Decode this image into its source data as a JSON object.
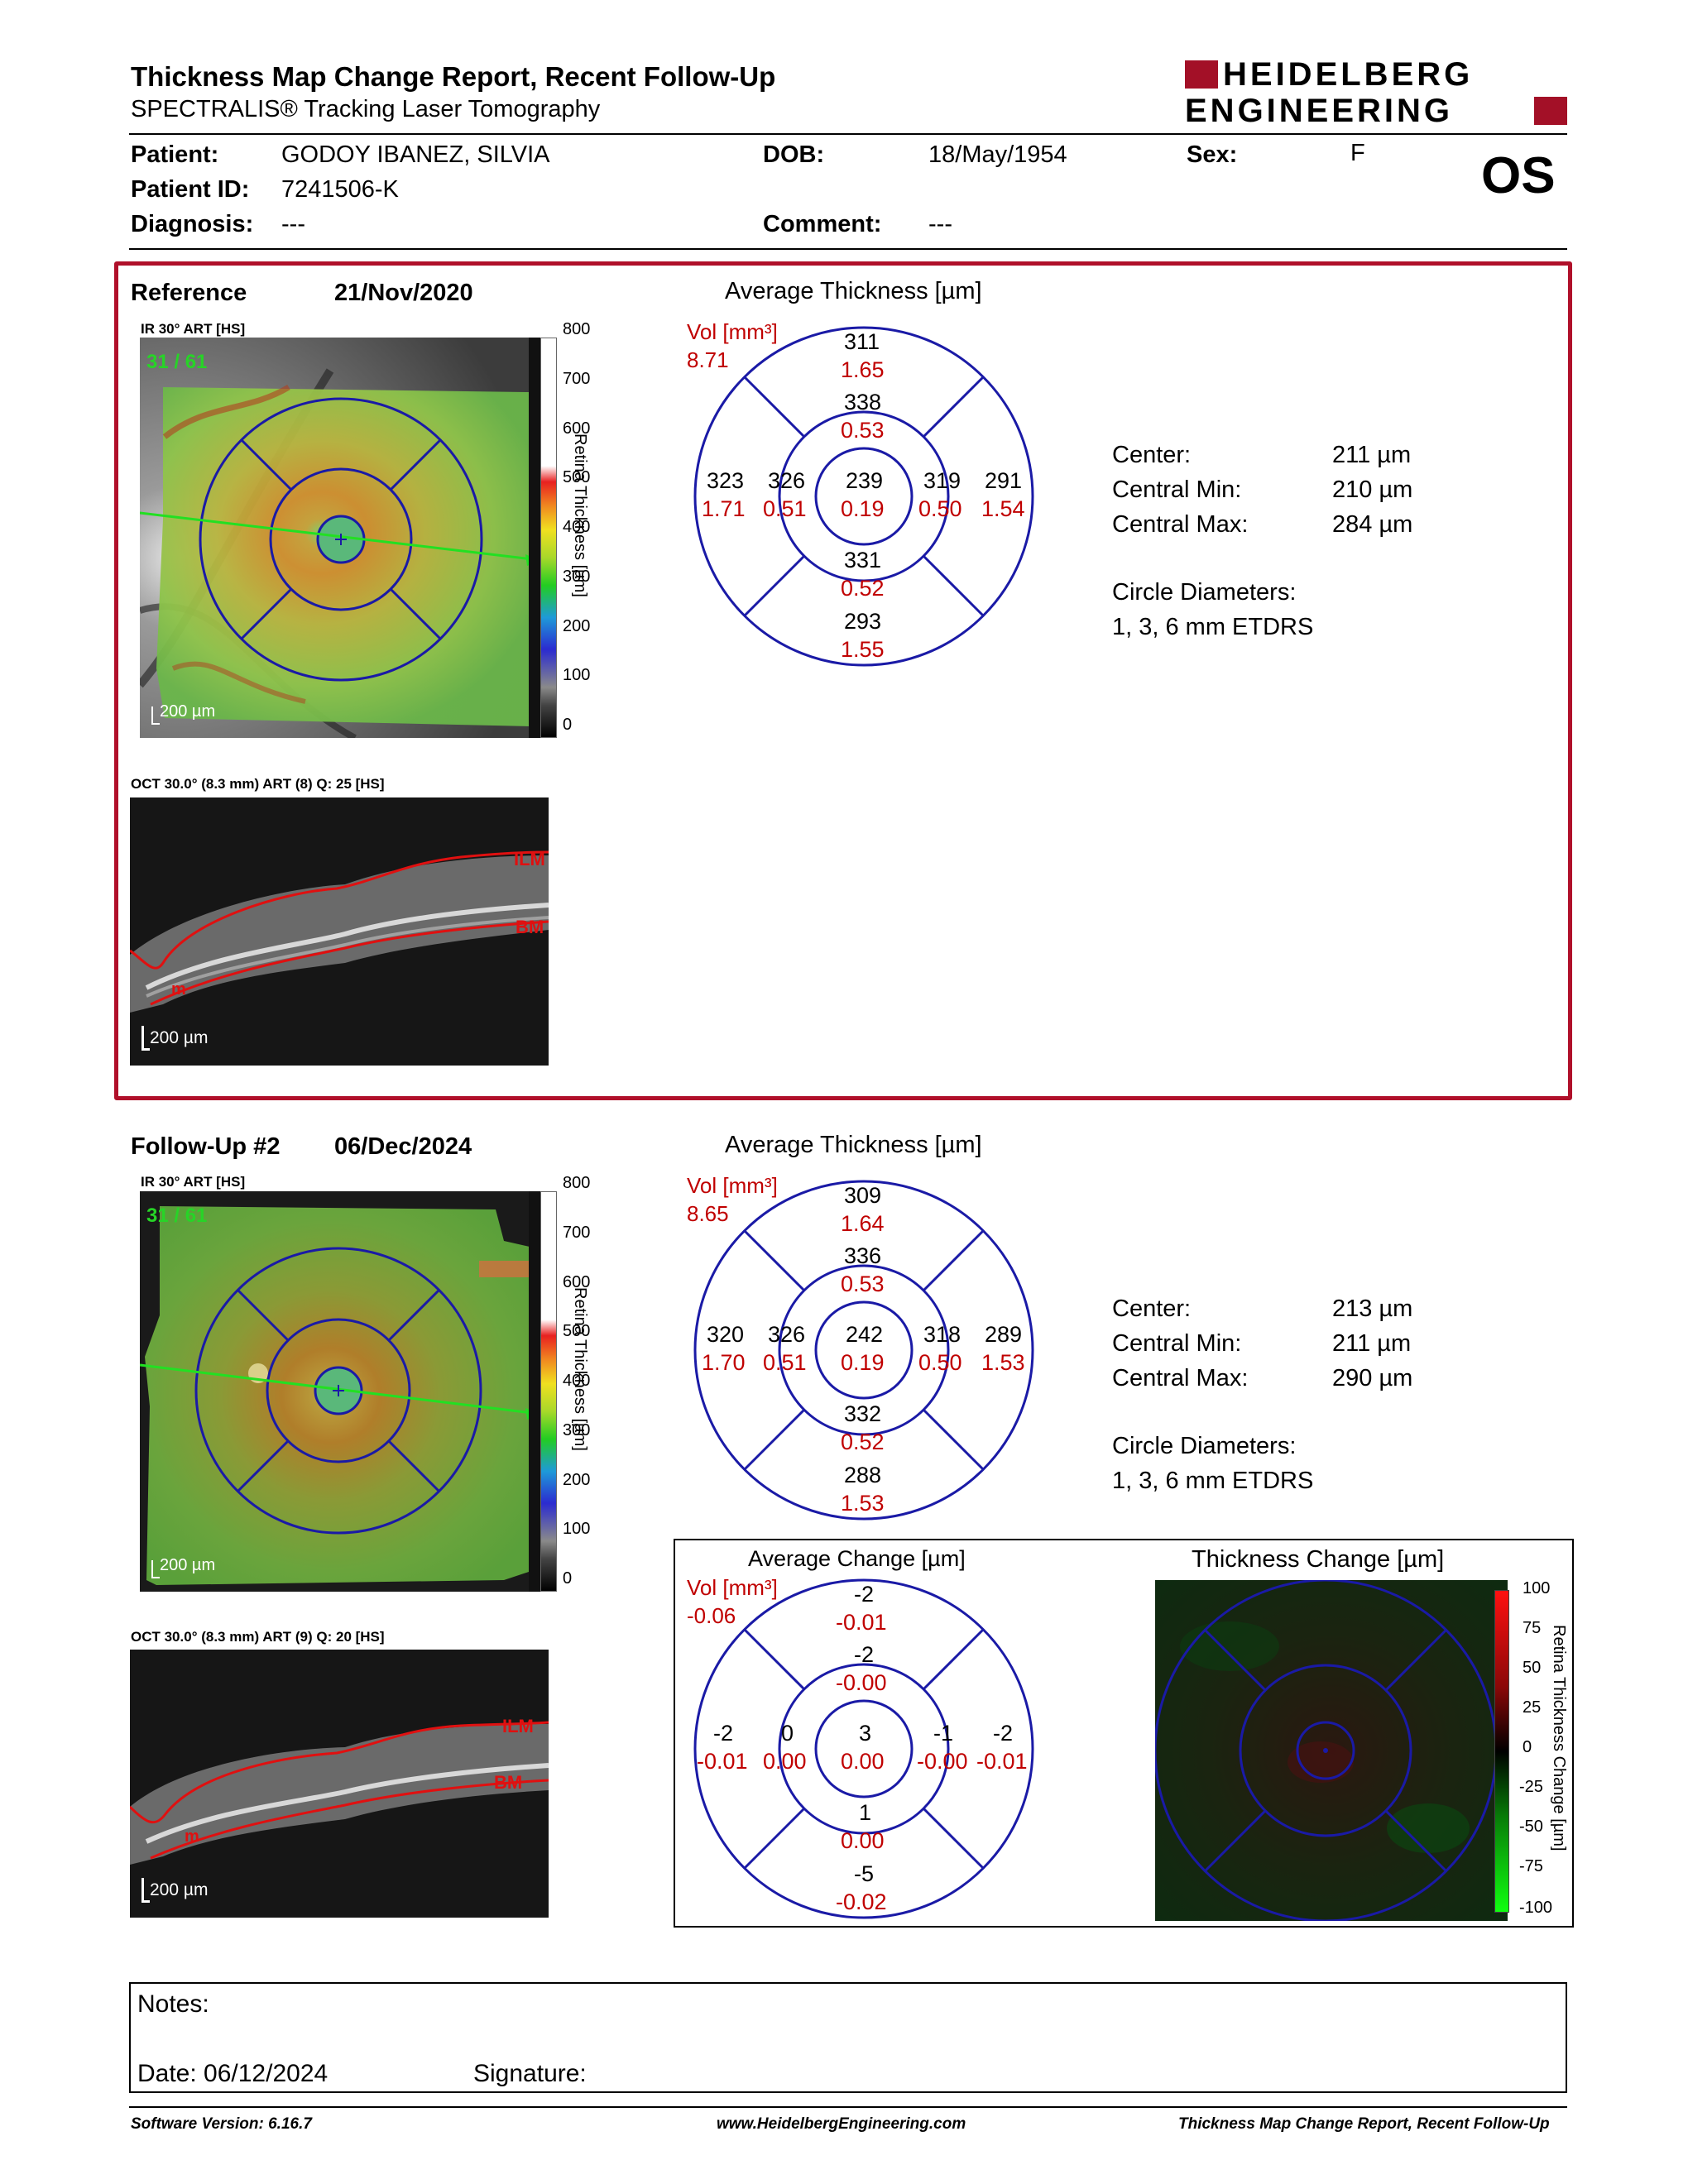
{
  "header": {
    "title": "Thickness Map Change Report, Recent Follow-Up",
    "subtitle": "SPECTRALIS® Tracking Laser Tomography",
    "logo_line1": "HEIDELBERG",
    "logo_line2": "ENGINEERING"
  },
  "patient": {
    "patient_label": "Patient:",
    "patient_value": "GODOY IBANEZ, SILVIA",
    "id_label": "Patient ID:",
    "id_value": "7241506-K",
    "diagnosis_label": "Diagnosis:",
    "diagnosis_value": "---",
    "dob_label": "DOB:",
    "dob_value": "18/May/1954",
    "comment_label": "Comment:",
    "comment_value": "---",
    "sex_label": "Sex:",
    "sex_value": "F",
    "eye": "OS"
  },
  "reference": {
    "label": "Reference",
    "date": "21/Nov/2020",
    "ir_label": "IR 30° ART [HS]",
    "frame": "31 / 61",
    "scale": "200 µm",
    "oct_label": "OCT 30.0° (8.3 mm) ART (8) Q: 25 [HS]",
    "oct_scale": "200 µm",
    "ilm": "ILM",
    "bm": "BM",
    "m": "m",
    "colorbar_ticks": [
      "800",
      "700",
      "600",
      "500",
      "400",
      "300",
      "200",
      "100",
      "0"
    ],
    "colorbar_title": "Retina Thickness [µm]",
    "avg_title": "Average Thickness [µm]",
    "vol_label": "Vol [mm³]",
    "vol_value": "8.71",
    "sectors": {
      "outer_sup": [
        "311",
        "1.65"
      ],
      "inner_sup": [
        "338",
        "0.53"
      ],
      "outer_temp": [
        "323",
        "1.71"
      ],
      "inner_temp": [
        "326",
        "0.51"
      ],
      "center": [
        "239",
        "0.19"
      ],
      "inner_nasal": [
        "319",
        "0.50"
      ],
      "outer_nasal": [
        "291",
        "1.54"
      ],
      "inner_inf": [
        "331",
        "0.52"
      ],
      "outer_inf": [
        "293",
        "1.55"
      ]
    },
    "stats": {
      "center_label": "Center:",
      "center_value": "211 µm",
      "min_label": "Central Min:",
      "min_value": "210 µm",
      "max_label": "Central Max:",
      "max_value": "284 µm",
      "circ_label": "Circle Diameters:",
      "circ_value": "1, 3, 6 mm ETDRS"
    }
  },
  "followup": {
    "label": "Follow-Up #2",
    "date": "06/Dec/2024",
    "ir_label": "IR 30° ART [HS]",
    "frame": "31 / 61",
    "scale": "200 µm",
    "oct_label": "OCT 30.0° (8.3 mm) ART (9) Q: 20 [HS]",
    "oct_scale": "200 µm",
    "ilm": "ILM",
    "bm": "BM",
    "m": "m",
    "colorbar_ticks": [
      "800",
      "700",
      "600",
      "500",
      "400",
      "300",
      "200",
      "100",
      "0"
    ],
    "colorbar_title": "Retina Thickness [µm]",
    "avg_title": "Average Thickness [µm]",
    "vol_label": "Vol [mm³]",
    "vol_value": "8.65",
    "sectors": {
      "outer_sup": [
        "309",
        "1.64"
      ],
      "inner_sup": [
        "336",
        "0.53"
      ],
      "outer_temp": [
        "320",
        "1.70"
      ],
      "inner_temp": [
        "326",
        "0.51"
      ],
      "center": [
        "242",
        "0.19"
      ],
      "inner_nasal": [
        "318",
        "0.50"
      ],
      "outer_nasal": [
        "289",
        "1.53"
      ],
      "inner_inf": [
        "332",
        "0.52"
      ],
      "outer_inf": [
        "288",
        "1.53"
      ]
    },
    "stats": {
      "center_label": "Center:",
      "center_value": "213 µm",
      "min_label": "Central Min:",
      "min_value": "211 µm",
      "max_label": "Central Max:",
      "max_value": "290 µm",
      "circ_label": "Circle Diameters:",
      "circ_value": "1, 3, 6 mm ETDRS"
    }
  },
  "change": {
    "avg_title": "Average Change [µm]",
    "vol_label": "Vol [mm³]",
    "vol_value": "-0.06",
    "sectors": {
      "outer_sup": [
        "-2",
        "-0.01"
      ],
      "inner_sup": [
        "-2",
        "-0.00"
      ],
      "outer_temp": [
        "-2",
        "-0.01"
      ],
      "inner_temp": [
        "0",
        "0.00"
      ],
      "center": [
        "3",
        "0.00"
      ],
      "inner_nasal": [
        "-1",
        "-0.00"
      ],
      "outer_nasal": [
        "-2",
        "-0.01"
      ],
      "inner_inf": [
        "1",
        "0.00"
      ],
      "outer_inf": [
        "-5",
        "-0.02"
      ]
    },
    "map_title": "Thickness Change [µm]",
    "colorbar_ticks": [
      "100",
      "75",
      "50",
      "25",
      "0",
      "-25",
      "-50",
      "-75",
      "-100"
    ],
    "colorbar_title": "Retina Thickness Change [µm]"
  },
  "notes": {
    "notes_label": "Notes:",
    "date_label": "Date: 06/12/2024",
    "signature_label": "Signature:"
  },
  "footer": {
    "software": "Software Version: 6.16.7",
    "website": "www.HeidelbergEngineering.com",
    "report": "Thickness Map Change Report, Recent Follow-Up"
  },
  "colors": {
    "accent_red": "#b0102a",
    "grid_blue": "#1a1aa6",
    "value_red": "#d00000"
  }
}
